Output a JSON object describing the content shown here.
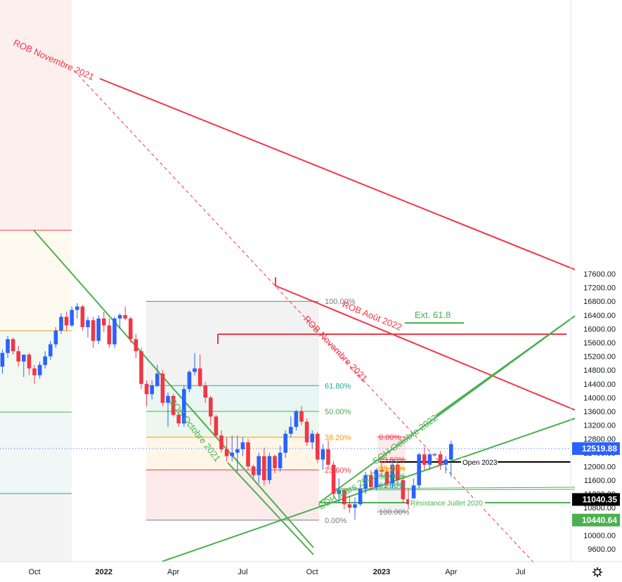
{
  "chart_data": {
    "type": "candlestick",
    "ylim": [
      9600,
      17800
    ],
    "y_ticks": [
      {
        "value": 17600,
        "label": "17600.00"
      },
      {
        "value": 17200,
        "label": "17200.00"
      },
      {
        "value": 16800,
        "label": "16800.00"
      },
      {
        "value": 16400,
        "label": "16400.00"
      },
      {
        "value": 16000,
        "label": "16000.00"
      },
      {
        "value": 15600,
        "label": "15600.00"
      },
      {
        "value": 15200,
        "label": "15200.00"
      },
      {
        "value": 14800,
        "label": "14800.00"
      },
      {
        "value": 14400,
        "label": "14400.00"
      },
      {
        "value": 14000,
        "label": "14000.00"
      },
      {
        "value": 13600,
        "label": "13600.00"
      },
      {
        "value": 13200,
        "label": "13200.00"
      },
      {
        "value": 12800,
        "label": "12800.00"
      },
      {
        "value": 12400,
        "label": "12400.00"
      },
      {
        "value": 12000,
        "label": "12000.00"
      },
      {
        "value": 11600,
        "label": "11600.00"
      },
      {
        "value": 11200,
        "label": "11200.00"
      },
      {
        "value": 10800,
        "label": "10800.00"
      },
      {
        "value": 10400,
        "label": "10400.00"
      },
      {
        "value": 10000,
        "label": "10000.00"
      },
      {
        "value": 9600,
        "label": "9600.00"
      }
    ],
    "x_ticks": [
      {
        "week": 0,
        "label": "Oct",
        "bold": false
      },
      {
        "week": 13,
        "label": "2022",
        "bold": true
      },
      {
        "week": 26,
        "label": "Apr",
        "bold": false
      },
      {
        "week": 39,
        "label": "Jul",
        "bold": false
      },
      {
        "week": 52,
        "label": "Oct",
        "bold": false
      },
      {
        "week": 65,
        "label": "2023",
        "bold": true
      },
      {
        "week": 78,
        "label": "Apr",
        "bold": false
      },
      {
        "week": 91,
        "label": "Jul",
        "bold": false
      }
    ],
    "candles": [
      [
        -6,
        14900,
        15400,
        14700,
        15300
      ],
      [
        -5,
        15300,
        15800,
        15150,
        15700
      ],
      [
        -4,
        15700,
        15750,
        15250,
        15350
      ],
      [
        -3,
        15350,
        15500,
        14900,
        15050
      ],
      [
        -2,
        15050,
        15200,
        14600,
        15250
      ],
      [
        -1,
        15250,
        15300,
        14650,
        14850
      ],
      [
        0,
        14850,
        14950,
        14400,
        14650
      ],
      [
        1,
        14650,
        15050,
        14550,
        14950
      ],
      [
        2,
        14950,
        15350,
        14850,
        15200
      ],
      [
        3,
        15200,
        15650,
        15100,
        15550
      ],
      [
        4,
        15550,
        16050,
        15450,
        15950
      ],
      [
        5,
        15950,
        16450,
        15850,
        16350
      ],
      [
        6,
        16350,
        16500,
        15950,
        16100
      ],
      [
        7,
        16100,
        16650,
        16050,
        16550
      ],
      [
        8,
        16550,
        16750,
        16300,
        16650
      ],
      [
        9,
        16650,
        16700,
        15950,
        16050
      ],
      [
        10,
        16050,
        16350,
        15750,
        16250
      ],
      [
        11,
        16250,
        16350,
        15450,
        15650
      ],
      [
        12,
        15650,
        16400,
        15550,
        16300
      ],
      [
        13,
        16300,
        16500,
        15900,
        16100
      ],
      [
        14,
        16100,
        16300,
        15450,
        15550
      ],
      [
        15,
        15550,
        16350,
        15450,
        16300
      ],
      [
        16,
        16300,
        16450,
        16000,
        16400
      ],
      [
        17,
        16400,
        16650,
        16250,
        16300
      ],
      [
        18,
        16300,
        16350,
        15600,
        15700
      ],
      [
        19,
        15700,
        15850,
        15150,
        15350
      ],
      [
        20,
        15350,
        15450,
        14250,
        14400
      ],
      [
        21,
        14400,
        14500,
        13750,
        14100
      ],
      [
        22,
        14100,
        14500,
        13950,
        14350
      ],
      [
        23,
        14350,
        14950,
        14300,
        14700
      ],
      [
        24,
        14700,
        14800,
        13750,
        13850
      ],
      [
        25,
        13850,
        14150,
        13150,
        14050
      ],
      [
        26,
        14050,
        14100,
        13450,
        13500
      ],
      [
        27,
        13500,
        13550,
        13150,
        13250
      ],
      [
        28,
        13250,
        14350,
        13150,
        14250
      ],
      [
        29,
        14250,
        14800,
        14150,
        14750
      ],
      [
        30,
        14750,
        15300,
        14650,
        14850
      ],
      [
        31,
        14850,
        15250,
        14300,
        14350
      ],
      [
        32,
        14350,
        14450,
        13850,
        14000
      ],
      [
        33,
        14000,
        14050,
        13200,
        13450
      ],
      [
        34,
        13450,
        13500,
        12850,
        12900
      ],
      [
        35,
        12900,
        13050,
        12400,
        12500
      ],
      [
        36,
        12500,
        12850,
        12150,
        12300
      ],
      [
        37,
        12300,
        12900,
        12150,
        12400
      ],
      [
        38,
        12400,
        12900,
        11850,
        12500
      ],
      [
        39,
        12500,
        12850,
        12300,
        12700
      ],
      [
        40,
        12700,
        12800,
        11900,
        12000
      ],
      [
        41,
        12000,
        12050,
        11650,
        11750
      ],
      [
        42,
        11750,
        12400,
        11500,
        12300
      ],
      [
        43,
        12300,
        12550,
        11450,
        11600
      ],
      [
        44,
        11600,
        12400,
        11500,
        12300
      ],
      [
        45,
        12300,
        12350,
        11800,
        11950
      ],
      [
        46,
        11950,
        12600,
        11850,
        12400
      ],
      [
        47,
        12400,
        13050,
        12250,
        12950
      ],
      [
        48,
        12950,
        13450,
        12850,
        13150
      ],
      [
        49,
        13150,
        13650,
        13050,
        13600
      ],
      [
        50,
        13600,
        13750,
        13200,
        13300
      ],
      [
        51,
        13300,
        13400,
        12600,
        12700
      ],
      [
        52,
        12700,
        13050,
        12500,
        12950
      ],
      [
        53,
        12950,
        13000,
        12100,
        12200
      ],
      [
        54,
        12200,
        12650,
        11900,
        12500
      ],
      [
        55,
        12500,
        12750,
        11950,
        12050
      ],
      [
        56,
        12050,
        12150,
        11100,
        11200
      ],
      [
        57,
        11200,
        11650,
        10950,
        11300
      ],
      [
        58,
        11300,
        11350,
        10750,
        10900
      ],
      [
        59,
        10900,
        11150,
        10650,
        10800
      ],
      [
        60,
        10800,
        11100,
        10450,
        10900
      ],
      [
        61,
        10900,
        11500,
        10850,
        11350
      ],
      [
        62,
        11350,
        11850,
        11200,
        11750
      ],
      [
        63,
        11750,
        11900,
        11350,
        11400
      ],
      [
        64,
        11400,
        11950,
        11300,
        11900
      ],
      [
        65,
        11900,
        12150,
        11700,
        11850
      ],
      [
        66,
        11850,
        11950,
        11400,
        11500
      ],
      [
        67,
        11500,
        12200,
        11350,
        12050
      ],
      [
        68,
        12050,
        12150,
        11500,
        11600
      ],
      [
        69,
        11600,
        11700,
        10950,
        11050
      ],
      [
        70,
        11050,
        11350,
        10750,
        10900
      ],
      [
        71,
        10900,
        11650,
        10800,
        11450
      ],
      [
        72,
        11450,
        12400,
        11350,
        12350
      ],
      [
        73,
        12350,
        12550,
        11900,
        12050
      ],
      [
        74,
        12050,
        12400,
        11900,
        12350
      ],
      [
        75,
        12350,
        12400,
        12300,
        12350
      ],
      [
        76,
        12350,
        12450,
        11900,
        12050
      ],
      [
        77,
        12050,
        12300,
        11800,
        12200
      ],
      [
        78,
        12200,
        12750,
        11700,
        12650
      ]
    ],
    "fib_levels": [
      {
        "label": "100.00%",
        "value": 16800
      },
      {
        "label": "61.80%",
        "value": 14350
      },
      {
        "label": "50.00%",
        "value": 13600
      },
      {
        "label": "38.20%",
        "value": 12850
      },
      {
        "label": "23.60%",
        "value": 11900
      },
      {
        "label": "0.00%",
        "value": 10440
      }
    ],
    "fib_levels_small": [
      {
        "label": "0.00%",
        "value": 12860
      },
      {
        "label": "23.60%",
        "value": 12200
      },
      {
        "label": "38.20%",
        "value": 11950
      },
      {
        "label": "50.00%",
        "value": 11720
      },
      {
        "label": "61.80%",
        "value": 11460
      },
      {
        "label": "100.00%",
        "value": 10680
      }
    ],
    "annotations": {
      "rob_nov_2021_left": "ROB Novembre 2021",
      "rob_nov_2021_mid": "ROB Novembre 2021",
      "rob_aout_2022": "ROB Août 2022",
      "ext_618": "Ext. 61.8",
      "sob_oct_2021": "SOB Octobre 2021",
      "soh_oct_2022": "SOH Octobre 2022",
      "soh_mars_2020": "SOH Mars 2020",
      "open_2023": "Open 2023",
      "resistance_juillet_2020": "Résistance Juillet 2020"
    },
    "price_tags": [
      {
        "value": 12519.88,
        "label": "12519.88",
        "color": "#2962ff"
      },
      {
        "value": 11040.35,
        "label": "11040.35",
        "color": "#000000"
      },
      {
        "value": 10440.64,
        "label": "10440.64",
        "color": "#4caf50"
      }
    ],
    "colors": {
      "up": "#2962ff",
      "down": "#f23645",
      "red_line": "#f23645",
      "green_line": "#4caf50",
      "orange": "#ff9800",
      "black": "#000000"
    },
    "settings_icon": "gear-icon"
  }
}
